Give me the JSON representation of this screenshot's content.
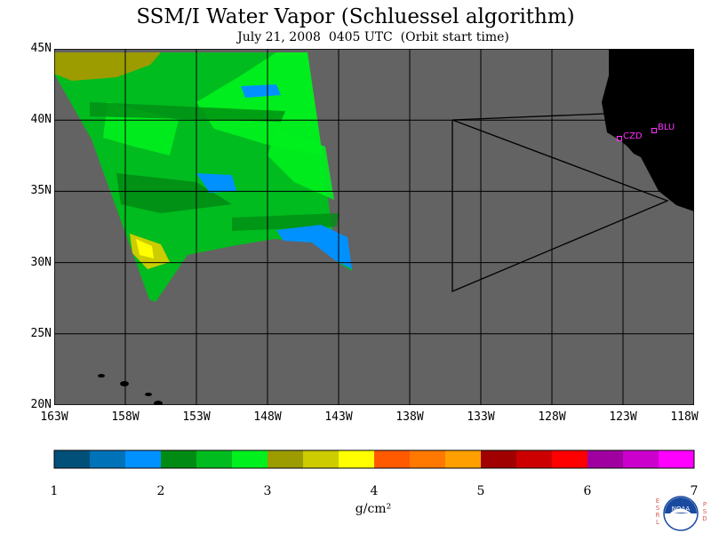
{
  "title": "SSM/I Water Vapor (Schluessel algorithm)",
  "subtitle": "July 21, 2008  0405 UTC  (Orbit start time)",
  "map": {
    "lat_range": [
      20,
      45
    ],
    "lon_range": [
      -163,
      -118
    ],
    "background_color": "#636363",
    "land_color": "#000000",
    "grid_color": "#000000",
    "lat_ticks": [
      "20N",
      "25N",
      "30N",
      "35N",
      "40N",
      "45N"
    ],
    "lon_ticks": [
      "163W",
      "158W",
      "153W",
      "148W",
      "143W",
      "138W",
      "133W",
      "128W",
      "123W",
      "118W"
    ],
    "stations": [
      {
        "name": "CZD",
        "lat": 38.6,
        "lon": -123.2
      },
      {
        "name": "BLU",
        "lat": 39.3,
        "lon": -120.9
      }
    ]
  },
  "colorbar": {
    "units": "g/cm²",
    "min": 1,
    "max": 7,
    "tick_labels": [
      "1",
      "2",
      "3",
      "4",
      "5",
      "6",
      "7"
    ],
    "colors": [
      "#00507a",
      "#0072b8",
      "#0091ff",
      "#008c14",
      "#00bc1e",
      "#00f01e",
      "#9c9c00",
      "#cccc00",
      "#ffff00",
      "#ff5a00",
      "#ff7800",
      "#ffa000",
      "#a00000",
      "#cc0000",
      "#ff0000",
      "#a000a0",
      "#cc00cc",
      "#ff00ff"
    ]
  },
  "logo": {
    "center_text": "NOAA",
    "left_letters": [
      "E",
      "S",
      "R",
      "L"
    ],
    "right_letters": [
      "P",
      "S",
      "D"
    ]
  }
}
